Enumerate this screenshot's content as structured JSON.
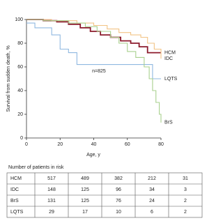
{
  "chart_data": {
    "type": "line",
    "step": true,
    "ylabel": "Survival from sudden death, %",
    "xlabel": "Age, y",
    "annotation": "n=825",
    "xlim": [
      0,
      80
    ],
    "xticks": [
      0,
      20,
      40,
      60,
      80
    ],
    "ylim": [
      0,
      100
    ],
    "yticks": [
      0,
      20,
      40,
      60,
      80,
      100
    ],
    "series": [
      {
        "name": "HCM",
        "color": "#8b1a2b",
        "x": [
          0,
          10,
          18,
          25,
          32,
          38,
          44,
          50,
          56,
          62,
          67,
          72,
          80
        ],
        "values": [
          100,
          99,
          98,
          96,
          93,
          90,
          87,
          85,
          82,
          80,
          77,
          72,
          72
        ]
      },
      {
        "name": "IDC",
        "color": "#f2c384",
        "x": [
          0,
          15,
          30,
          40,
          48,
          55,
          62,
          68,
          72,
          76,
          80
        ],
        "values": [
          100,
          99,
          97,
          95,
          92,
          89,
          87,
          85,
          80,
          75,
          67
        ]
      },
      {
        "name": "LQTS",
        "color": "#8fb8e0",
        "x": [
          0,
          5,
          15,
          20,
          25,
          30,
          70,
          75,
          80
        ],
        "values": [
          97,
          93,
          87,
          75,
          72,
          62,
          62,
          50,
          50
        ]
      },
      {
        "name": "BrS",
        "color": "#a8d08d",
        "x": [
          0,
          10,
          25,
          35,
          42,
          50,
          55,
          60,
          65,
          70,
          73,
          75,
          77,
          79,
          80
        ],
        "values": [
          100,
          99,
          97,
          94,
          90,
          85,
          80,
          73,
          68,
          60,
          50,
          40,
          30,
          20,
          13
        ]
      }
    ]
  },
  "table": {
    "caption": "Number of patients in risk",
    "rows": [
      [
        "HCM",
        "517",
        "489",
        "382",
        "212",
        "31"
      ],
      [
        "IDC",
        "148",
        "125",
        "96",
        "34",
        "3"
      ],
      [
        "BrS",
        "131",
        "125",
        "76",
        "24",
        "2"
      ],
      [
        "LQTS",
        "29",
        "17",
        "10",
        "6",
        "2"
      ]
    ]
  }
}
